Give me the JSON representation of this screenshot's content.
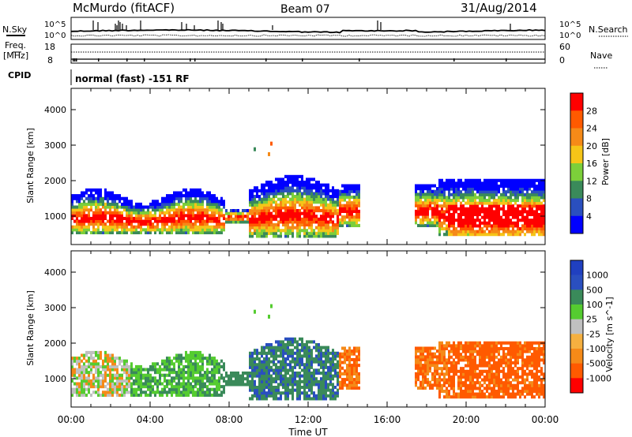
{
  "header": {
    "station": "McMurdo (fitACF)",
    "beam": "Beam 07",
    "date": "31/Aug/2014",
    "mode": "normal (fast) -151 RF"
  },
  "top_panels": {
    "nsky_label": "N.Sky",
    "nsearch_label": "N.Search",
    "noise_ticks": [
      "10^5",
      "10^0"
    ],
    "freq_label_1": "Freq.",
    "freq_label_2": "[MHz]",
    "freq_ticks": [
      "18",
      "8"
    ],
    "nave_label": "Nave",
    "nave_ticks": [
      "60",
      "0"
    ],
    "cpid_label": "CPID"
  },
  "colors": {
    "power": [
      "#0000ff",
      "#2a4fbf",
      "#3a8a5a",
      "#7ccf3a",
      "#f5c518",
      "#f58a18",
      "#ff5a00",
      "#ff0000"
    ],
    "velocity": [
      "#ff0000",
      "#ff5a00",
      "#f58a18",
      "#f5b040",
      "#c0c0c0",
      "#55cc30",
      "#3a8a5a",
      "#2a4fbf",
      "#2040c0"
    ]
  },
  "chart_data": [
    {
      "type": "heatmap",
      "panel": "power",
      "ylabel": "Slant Range [km]",
      "xlabel": "Time UT",
      "x_ticks": [
        "00:00",
        "04:00",
        "08:00",
        "12:00",
        "16:00",
        "20:00",
        "00:00"
      ],
      "y_ticks": [
        1000,
        2000,
        3000,
        4000
      ],
      "ylim": [
        200,
        4600
      ],
      "xlim_hours": [
        0,
        24
      ],
      "colorbar_label": "Power [dB]",
      "colorbar_ticks": [
        "4",
        "8",
        "12",
        "16",
        "20",
        "24",
        "28"
      ]
    },
    {
      "type": "heatmap",
      "panel": "velocity",
      "ylabel": "Slant Range [km]",
      "xlabel": "Time UT",
      "x_ticks": [
        "00:00",
        "04:00",
        "08:00",
        "12:00",
        "16:00",
        "20:00",
        "00:00"
      ],
      "y_ticks": [
        1000,
        2000,
        3000,
        4000
      ],
      "ylim": [
        200,
        4600
      ],
      "xlim_hours": [
        0,
        24
      ],
      "colorbar_label": "Velocity [m s^-1]",
      "colorbar_ticks": [
        "1000",
        "500",
        "100",
        "25",
        "-25",
        "-100",
        "-500",
        "-1000"
      ]
    }
  ]
}
